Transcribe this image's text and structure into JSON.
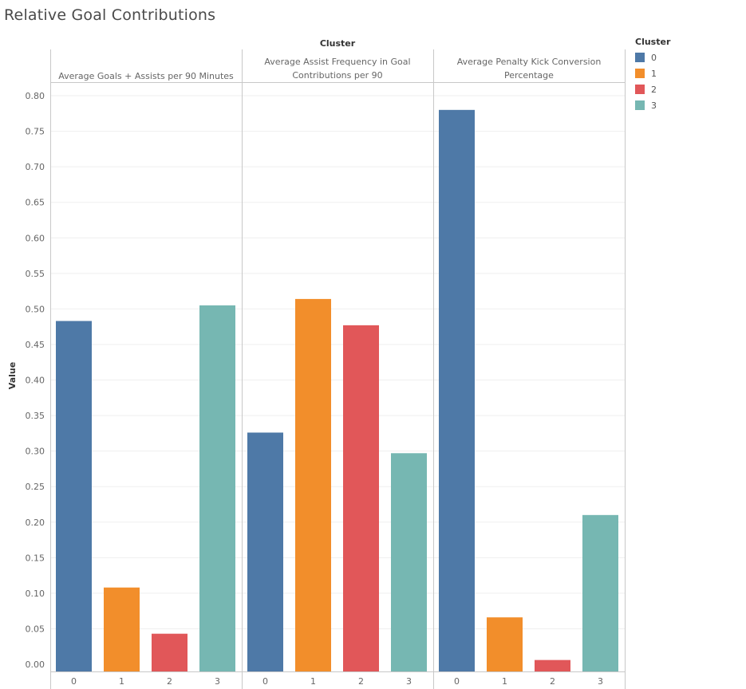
{
  "title": "Relative Goal Contributions",
  "chart_data": {
    "type": "bar",
    "column_header": "Cluster",
    "ylabel": "Value",
    "ylim": [
      0,
      0.8
    ],
    "yticks": [
      "0.00",
      "0.05",
      "0.10",
      "0.15",
      "0.20",
      "0.25",
      "0.30",
      "0.35",
      "0.40",
      "0.45",
      "0.50",
      "0.55",
      "0.60",
      "0.65",
      "0.70",
      "0.75",
      "0.80"
    ],
    "categories": [
      "0",
      "1",
      "2",
      "3"
    ],
    "grid": true,
    "panels": [
      {
        "title_lines": [
          "Average Goals + Assists per 90 Minutes"
        ],
        "values": [
          0.483,
          0.108,
          0.043,
          0.505
        ]
      },
      {
        "title_lines": [
          "Average Assist Frequency in Goal",
          "Contributions per 90"
        ],
        "values": [
          0.326,
          0.514,
          0.477,
          0.297
        ]
      },
      {
        "title_lines": [
          "Average Penalty Kick Conversion",
          "Percentage"
        ],
        "values": [
          0.78,
          0.066,
          0.006,
          0.21
        ]
      }
    ],
    "legend": {
      "title": "Cluster",
      "position": "top-right",
      "items": [
        {
          "label": "0",
          "color": "#4e79a7"
        },
        {
          "label": "1",
          "color": "#f28e2b"
        },
        {
          "label": "2",
          "color": "#e15759"
        },
        {
          "label": "3",
          "color": "#76b7b2"
        }
      ]
    }
  }
}
